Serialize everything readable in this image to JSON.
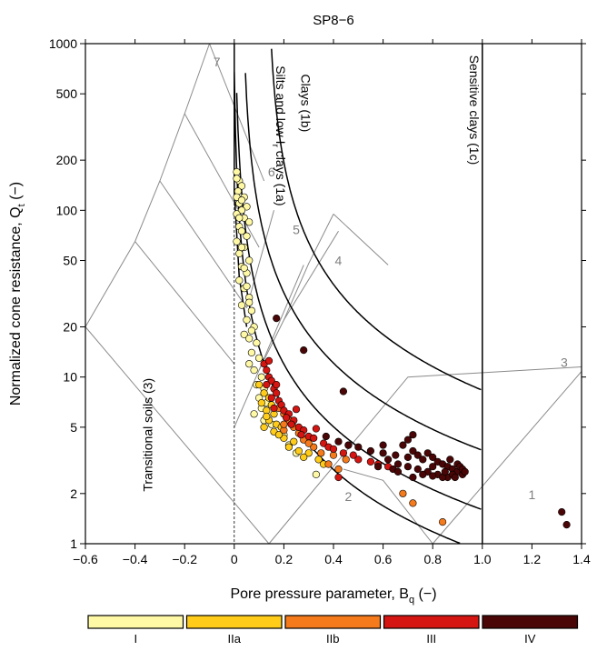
{
  "chart_data": {
    "type": "scatter",
    "title": "SP8−6",
    "xlabel": {
      "main": "Pore pressure parameter, B",
      "sub": "q",
      "tail": " (−)"
    },
    "ylabel": {
      "main": "Normalized cone resistance, Q",
      "sub": "t",
      "tail": " (−)"
    },
    "x_axis": {
      "min": -0.6,
      "max": 1.4,
      "ticks": [
        -0.6,
        -0.4,
        -0.2,
        0,
        0.2,
        0.4,
        0.6,
        0.8,
        1.0,
        1.2,
        1.4
      ],
      "tick_labels": [
        "−0.6",
        "−0.4",
        "−0.2",
        "0",
        "0.2",
        "0.4",
        "0.6",
        "0.8",
        "1.0",
        "1.2",
        "1.4"
      ]
    },
    "y_axis": {
      "scale": "log",
      "min": 1,
      "max": 1000,
      "ticks": [
        1,
        2,
        5,
        10,
        20,
        50,
        100,
        200,
        500,
        1000
      ],
      "tick_labels": [
        "1",
        "2",
        "5",
        "10",
        "20",
        "50",
        "100",
        "200",
        "500",
        "1000"
      ]
    },
    "zone_labels": [
      {
        "text": "7",
        "x": -0.07,
        "y": 730
      },
      {
        "text": "6",
        "x": 0.15,
        "y": 160
      },
      {
        "text": "5",
        "x": 0.25,
        "y": 72
      },
      {
        "text": "4",
        "x": 0.42,
        "y": 47
      },
      {
        "text": "3",
        "x": 1.33,
        "y": 11.5
      },
      {
        "text": "2",
        "x": 0.46,
        "y": 1.8
      },
      {
        "text": "1",
        "x": 1.2,
        "y": 1.85
      }
    ],
    "region_labels": [
      {
        "text": "Clays (1b)",
        "x": 0.27,
        "y": 440,
        "rotate": 90
      },
      {
        "text": "Sensitive clays (1c)",
        "x": 0.95,
        "y": 400,
        "rotate": 90
      },
      {
        "text": "Transitional soils (3)",
        "x": -0.33,
        "y": 4.5,
        "rotate": -90
      }
    ],
    "silts_label": {
      "line1": "Silts and low I",
      "sub": "r",
      "line2": " clays (1a)",
      "x": 0.17,
      "y": 280
    },
    "series": [
      {
        "class": "I",
        "color": "#FFF9A6",
        "points": [
          [
            0.01,
            170
          ],
          [
            0.02,
            150
          ],
          [
            0.03,
            140
          ],
          [
            0.015,
            130
          ],
          [
            0.04,
            120
          ],
          [
            0.02,
            110
          ],
          [
            0.05,
            105
          ],
          [
            0.03,
            100
          ],
          [
            0.01,
            95
          ],
          [
            0.04,
            90
          ],
          [
            0.06,
            85
          ],
          [
            0.02,
            80
          ],
          [
            0.03,
            75
          ],
          [
            0.05,
            70
          ],
          [
            0.01,
            65
          ],
          [
            0.04,
            60
          ],
          [
            0.02,
            55
          ],
          [
            0.06,
            50
          ],
          [
            0.03,
            46
          ],
          [
            0.05,
            42
          ],
          [
            0.02,
            38
          ],
          [
            0.04,
            34
          ],
          [
            0.06,
            30
          ],
          [
            0.03,
            27
          ],
          [
            0.07,
            25
          ],
          [
            0.05,
            22
          ],
          [
            0.08,
            20
          ],
          [
            0.04,
            18
          ],
          [
            0.06,
            17
          ],
          [
            0.09,
            16
          ],
          [
            0.07,
            14
          ],
          [
            0.1,
            13
          ],
          [
            0.06,
            12
          ],
          [
            0.08,
            11
          ],
          [
            0.11,
            10
          ],
          [
            0.09,
            9
          ],
          [
            0.12,
            8.5
          ],
          [
            0.1,
            7.5
          ],
          [
            0.13,
            7
          ],
          [
            0.11,
            6.5
          ],
          [
            0.08,
            6
          ],
          [
            0.12,
            5.5
          ],
          [
            0.15,
            5.2
          ],
          [
            0.2,
            4.5
          ],
          [
            0.22,
            3.9
          ],
          [
            0.25,
            3.5
          ],
          [
            0.33,
            2.6
          ],
          [
            0.01,
            120
          ],
          [
            0.02,
            90
          ],
          [
            0.03,
            60
          ],
          [
            0.04,
            45
          ],
          [
            0.05,
            35
          ],
          [
            0.06,
            28
          ],
          [
            0.01,
            155
          ],
          [
            0.03,
            115
          ],
          [
            0.07,
            19
          ]
        ]
      },
      {
        "class": "IIa",
        "color": "#FFCC1A",
        "points": [
          [
            0.1,
            9
          ],
          [
            0.12,
            8
          ],
          [
            0.14,
            7.5
          ],
          [
            0.11,
            7
          ],
          [
            0.15,
            6.8
          ],
          [
            0.13,
            6.3
          ],
          [
            0.16,
            6
          ],
          [
            0.14,
            5.5
          ],
          [
            0.17,
            5.2
          ],
          [
            0.12,
            5
          ],
          [
            0.19,
            5
          ],
          [
            0.16,
            4.7
          ],
          [
            0.2,
            4.3
          ],
          [
            0.24,
            4.1
          ],
          [
            0.22,
            3.8
          ],
          [
            0.26,
            3.6
          ],
          [
            0.3,
            3.5
          ],
          [
            0.28,
            3.3
          ],
          [
            0.34,
            3.2
          ],
          [
            0.36,
            3.0
          ],
          [
            0.18,
            4.5
          ],
          [
            0.13,
            5.8
          ]
        ]
      },
      {
        "class": "IIb",
        "color": "#F57A1C",
        "points": [
          [
            0.18,
            6.5
          ],
          [
            0.2,
            6
          ],
          [
            0.22,
            5.5
          ],
          [
            0.24,
            5
          ],
          [
            0.2,
            4.8
          ],
          [
            0.26,
            4.6
          ],
          [
            0.28,
            4.2
          ],
          [
            0.32,
            3.8
          ],
          [
            0.35,
            3.5
          ],
          [
            0.4,
            3.4
          ],
          [
            0.45,
            3.2
          ],
          [
            0.38,
            3.0
          ],
          [
            0.42,
            2.8
          ],
          [
            0.68,
            2.0
          ],
          [
            0.72,
            1.75
          ],
          [
            0.84,
            1.35
          ],
          [
            0.2,
            5.2
          ],
          [
            0.3,
            4.0
          ]
        ]
      },
      {
        "class": "III",
        "color": "#D41511",
        "points": [
          [
            0.12,
            12
          ],
          [
            0.13,
            11
          ],
          [
            0.14,
            10
          ],
          [
            0.15,
            9.5
          ],
          [
            0.13,
            9
          ],
          [
            0.16,
            8.5
          ],
          [
            0.17,
            8
          ],
          [
            0.15,
            7.5
          ],
          [
            0.18,
            7.2
          ],
          [
            0.19,
            6.8
          ],
          [
            0.16,
            6.5
          ],
          [
            0.2,
            6.3
          ],
          [
            0.22,
            6
          ],
          [
            0.21,
            5.7
          ],
          [
            0.24,
            5.5
          ],
          [
            0.23,
            5.2
          ],
          [
            0.26,
            5
          ],
          [
            0.28,
            4.8
          ],
          [
            0.27,
            4.5
          ],
          [
            0.3,
            4.4
          ],
          [
            0.32,
            4.3
          ],
          [
            0.36,
            4.0
          ],
          [
            0.38,
            3.8
          ],
          [
            0.4,
            3.7
          ],
          [
            0.44,
            3.5
          ],
          [
            0.48,
            3.4
          ],
          [
            0.5,
            3.2
          ],
          [
            0.55,
            3.1
          ],
          [
            0.58,
            3.0
          ],
          [
            0.62,
            2.9
          ],
          [
            0.42,
            2.5
          ],
          [
            0.14,
            12.5
          ],
          [
            0.17,
            9
          ],
          [
            0.25,
            6.4
          ],
          [
            0.33,
            4.9
          ],
          [
            0.46,
            3.9
          ]
        ]
      },
      {
        "class": "IV",
        "color": "#4A0606",
        "points": [
          [
            0.17,
            22.5
          ],
          [
            0.28,
            14.5
          ],
          [
            0.44,
            8.2
          ],
          [
            0.37,
            4.4
          ],
          [
            0.42,
            4.1
          ],
          [
            0.46,
            3.9
          ],
          [
            0.5,
            3.8
          ],
          [
            0.55,
            3.6
          ],
          [
            0.6,
            3.5
          ],
          [
            0.65,
            3.4
          ],
          [
            0.7,
            3.3
          ],
          [
            0.72,
            3.6
          ],
          [
            0.74,
            3.4
          ],
          [
            0.76,
            3.2
          ],
          [
            0.78,
            3.5
          ],
          [
            0.8,
            3.3
          ],
          [
            0.82,
            3.1
          ],
          [
            0.84,
            3.0
          ],
          [
            0.86,
            2.9
          ],
          [
            0.88,
            2.8
          ],
          [
            0.9,
            2.7
          ],
          [
            0.92,
            2.6
          ],
          [
            0.82,
            2.6
          ],
          [
            0.78,
            2.7
          ],
          [
            0.74,
            2.8
          ],
          [
            0.7,
            2.9
          ],
          [
            0.66,
            3.0
          ],
          [
            0.86,
            2.5
          ],
          [
            0.88,
            2.6
          ],
          [
            0.84,
            2.5
          ],
          [
            0.8,
            2.55
          ],
          [
            0.76,
            2.6
          ],
          [
            0.72,
            2.5
          ],
          [
            0.9,
            3.0
          ],
          [
            0.91,
            2.9
          ],
          [
            0.7,
            4.2
          ],
          [
            0.72,
            4.5
          ],
          [
            0.68,
            3.9
          ],
          [
            0.62,
            3.2
          ],
          [
            0.64,
            2.8
          ],
          [
            0.66,
            2.7
          ],
          [
            0.8,
            2.9
          ],
          [
            0.85,
            2.7
          ],
          [
            0.87,
            3.2
          ],
          [
            0.89,
            2.5
          ],
          [
            0.92,
            2.8
          ],
          [
            0.93,
            2.7
          ],
          [
            0.6,
            3.9
          ],
          [
            0.58,
            2.9
          ],
          [
            1.32,
            1.55
          ],
          [
            1.34,
            1.3
          ]
        ]
      }
    ],
    "legend": [
      {
        "label": "I",
        "color": "#FFF9A6"
      },
      {
        "label": "IIa",
        "color": "#FFCC1A"
      },
      {
        "label": "IIb",
        "color": "#F57A1C"
      },
      {
        "label": "III",
        "color": "#D41511"
      },
      {
        "label": "IV",
        "color": "#4A0606"
      }
    ]
  }
}
